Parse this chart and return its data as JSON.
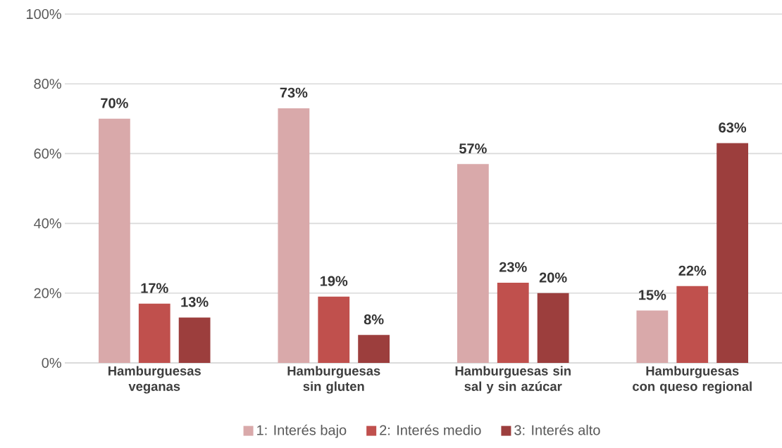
{
  "chart_data": {
    "type": "bar",
    "categories": [
      "Hamburguesas veganas",
      "Hamburguesas sin gluten",
      "Hamburguesas sin sal y sin azúcar",
      "Hamburguesas con queso regional"
    ],
    "series": [
      {
        "name": "1: Interés bajo",
        "color": "#d9a9aa",
        "values": [
          70,
          73,
          57,
          15
        ],
        "value_labels": [
          "70%",
          "73%",
          "57%",
          "15%"
        ]
      },
      {
        "name": "2: Interés medio",
        "color": "#c0504d",
        "values": [
          17,
          19,
          23,
          22
        ],
        "value_labels": [
          "17%",
          "19%",
          "23%",
          "22%"
        ]
      },
      {
        "name": "3: Interés alto",
        "color": "#9c3e3d",
        "values": [
          13,
          8,
          20,
          63
        ],
        "value_labels": [
          "13%",
          "8%",
          "20%",
          "63%"
        ]
      }
    ],
    "ylim": [
      0,
      100
    ],
    "yticks": [
      {
        "value": 0,
        "label": "0%"
      },
      {
        "value": 20,
        "label": "20%"
      },
      {
        "value": 40,
        "label": "40%"
      },
      {
        "value": 60,
        "label": "60%"
      },
      {
        "value": 80,
        "label": "80%"
      },
      {
        "value": 100,
        "label": "100%"
      }
    ],
    "grid": "y",
    "legend": "bottom"
  }
}
